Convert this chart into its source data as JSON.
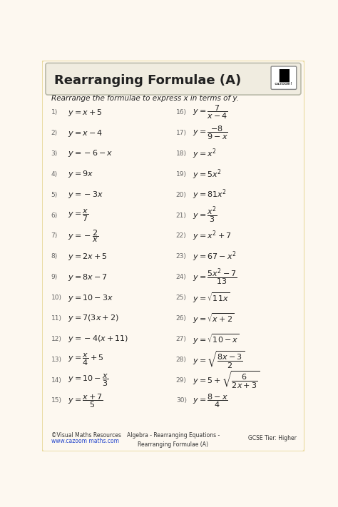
{
  "title": "Rearranging Formulae (A)",
  "subtitle": "Rearrange the formulae to express x in terms of y.",
  "bg_color": "#fdf8f0",
  "border_color": "#e8d89a",
  "left_numbers": [
    "1)",
    "2)",
    "3)",
    "4)",
    "5)",
    "6)",
    "7)",
    "8)",
    "9)",
    "10)",
    "11)",
    "12)",
    "13)",
    "14)",
    "15)"
  ],
  "right_numbers": [
    "16)",
    "17)",
    "18)",
    "19)",
    "20)",
    "21)",
    "22)",
    "23)",
    "24)",
    "25)",
    "26)",
    "27)",
    "28)",
    "29)",
    "30)"
  ],
  "left_eqs": [
    "$y = x + 5$",
    "$y = x - 4$",
    "$y = -6 - x$",
    "$y = 9x$",
    "$y = -3x$",
    "$y = \\dfrac{x}{7}$",
    "$y = -\\dfrac{2}{x}$",
    "$y = 2x + 5$",
    "$y = 8x - 7$",
    "$y = 10 - 3x$",
    "$y = 7(3x + 2)$",
    "$y = -4(x + 11)$",
    "$y = \\dfrac{x}{4} + 5$",
    "$y = 10 - \\dfrac{x}{3}$",
    "$y = \\dfrac{x + 7}{5}$"
  ],
  "right_eqs": [
    "$y = \\dfrac{7}{x-4}$",
    "$y = \\dfrac{-8}{9-x}$",
    "$y = x^2$",
    "$y = 5x^2$",
    "$y = 81x^2$",
    "$y = \\dfrac{x^2}{3}$",
    "$y = x^2 + 7$",
    "$y = 67 - x^2$",
    "$y = \\dfrac{5x^2 - 7}{13}$",
    "$y = \\sqrt{11x}$",
    "$y = \\sqrt{x + 2}$",
    "$y = \\sqrt{10 - x}$",
    "$y = \\sqrt{\\dfrac{8x-3}{2}}$",
    "$y = 5 + \\sqrt{\\dfrac{6}{2x+3}}$",
    "$y = \\dfrac{8-x}{4}$"
  ],
  "footer_left1": "©Visual Maths Resources",
  "footer_left2": "www.cazoom maths.com",
  "footer_center": "Algebra - Rearranging Equations -\nRearranging Formulae (A)",
  "footer_right": "GCSE Tier: Higher",
  "text_color": "#222222",
  "number_color": "#666666"
}
